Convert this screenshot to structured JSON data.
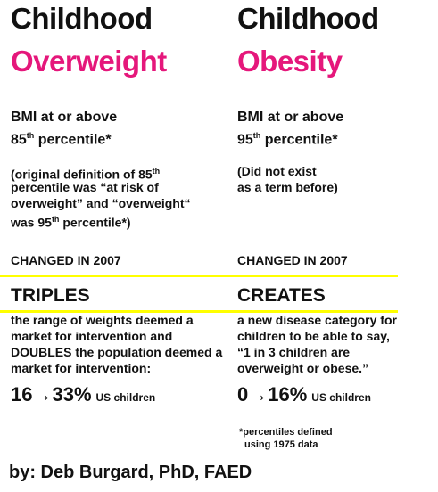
{
  "columns": [
    {
      "heading": "Childhood",
      "term": "Overweight",
      "definition": [
        [
          {
            "text": "BMI at or above"
          }
        ],
        [
          {
            "text": "85"
          },
          {
            "sup": "th"
          },
          {
            "text": " percentile*"
          }
        ]
      ],
      "note": [
        [
          {
            "text": "(original definition of 85"
          },
          {
            "sup": "th"
          }
        ],
        [
          {
            "text": "percentile was “at risk of"
          }
        ],
        [
          {
            "text": "overweight” and “overweight“"
          }
        ],
        [
          {
            "text": "was 95"
          },
          {
            "sup": "th"
          },
          {
            "text": " percentile*)"
          }
        ]
      ],
      "changed": "CHANGED IN 2007",
      "verb": "TRIPLES",
      "description": [
        "the range of weights deemed a",
        "market for intervention and",
        "DOUBLES the population deemed a",
        "market for intervention:"
      ],
      "stat": "16→33%",
      "stat_unit": "US children"
    },
    {
      "heading": "Childhood",
      "term": "Obesity",
      "definition": [
        [
          {
            "text": "BMI at or above"
          }
        ],
        [
          {
            "text": "95"
          },
          {
            "sup": "th"
          },
          {
            "text": " percentile*"
          }
        ]
      ],
      "note": [
        [
          {
            "text": "(Did not exist"
          }
        ],
        [
          {
            "text": "as a term before)"
          }
        ]
      ],
      "changed": "CHANGED IN 2007",
      "verb": "CREATES",
      "description": [
        "a new disease category for",
        "children to be able to say,",
        "“1 in 3 children are",
        "overweight or obese.”"
      ],
      "stat": "0→16%",
      "stat_unit": "US children"
    }
  ],
  "footnote": [
    "*percentiles defined",
    "using 1975 data"
  ],
  "byline": "by: Deb Burgard, PhD, FAED"
}
